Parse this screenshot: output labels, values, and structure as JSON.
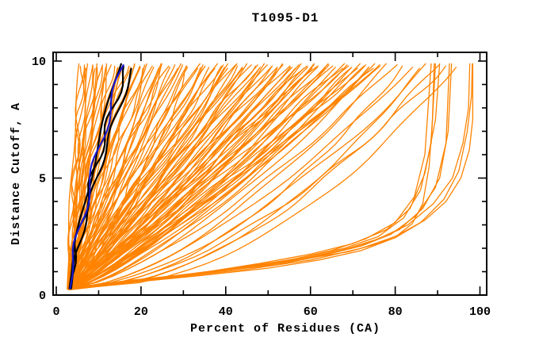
{
  "title": "T1095-D1",
  "axes": {
    "x": {
      "label": "Percent of Residues (CA)"
    },
    "y": {
      "label": "Distance Cutoff, A"
    }
  },
  "colors": {
    "model_orange": "#ff8300",
    "highlight_black": "#000000",
    "highlight_blue": "#1818cf",
    "frame": "#000000",
    "background": "#ffffff"
  },
  "chart_data": {
    "type": "line",
    "title": "T1095-D1",
    "xlabel": "Percent of Residues (CA)",
    "ylabel": "Distance Cutoff, A",
    "xlim": [
      0,
      100
    ],
    "ylim": [
      0,
      10
    ],
    "x_major_ticks": [
      0,
      20,
      40,
      60,
      80,
      100
    ],
    "x_minor_step": 10,
    "y_major_ticks": [
      0,
      5,
      10
    ],
    "y_minor_step": 1,
    "grid": false,
    "legend": false,
    "curve_start": {
      "x_percent": 3.0,
      "y_cutoff": 0.25
    },
    "series_note": "Each curve: percent of CA residues (x) under distance cutoff (y). Orange = predicted models; black/blue = highlighted models. Curve encoded as [top_percent_at_10A, shape_power]; x(y)=x0+(top-x0)*u^power, u normalized cutoff.",
    "orange_curves": [
      [
        5.5,
        1.5
      ],
      [
        5.9,
        1.35
      ],
      [
        6.3,
        1.45
      ],
      [
        6.8,
        1.25
      ],
      [
        7.3,
        1.4
      ],
      [
        7.8,
        1.3
      ],
      [
        8.3,
        1.18
      ],
      [
        8.8,
        1.35
      ],
      [
        9.3,
        1.22
      ],
      [
        9.8,
        1.42
      ],
      [
        10.2,
        1.15
      ],
      [
        10.6,
        1.3
      ],
      [
        10.9,
        1.25
      ],
      [
        11.4,
        1.12
      ],
      [
        11.9,
        1.3
      ],
      [
        12.4,
        1.08
      ],
      [
        12.9,
        1.22
      ],
      [
        13.5,
        1.35
      ],
      [
        14.1,
        1.1
      ],
      [
        14.7,
        1.28
      ],
      [
        15.3,
        1.05
      ],
      [
        15.9,
        1.2
      ],
      [
        16.5,
        1.32
      ],
      [
        17.1,
        1.08
      ],
      [
        17.7,
        1.18
      ],
      [
        18.3,
        1.25
      ],
      [
        18.9,
        1.02
      ],
      [
        19.4,
        1.15
      ],
      [
        19.8,
        1.28
      ],
      [
        20.2,
        1.1
      ],
      [
        20.8,
        1.05
      ],
      [
        21.5,
        0.92
      ],
      [
        22.3,
        1.15
      ],
      [
        23.1,
        0.98
      ],
      [
        23.9,
        1.1
      ],
      [
        24.7,
        0.88
      ],
      [
        25.5,
        1.02
      ],
      [
        26.4,
        1.18
      ],
      [
        27.3,
        0.95
      ],
      [
        28.2,
        1.08
      ],
      [
        29.1,
        0.9
      ],
      [
        30.0,
        1.12
      ],
      [
        30.9,
        0.97
      ],
      [
        31.8,
        1.05
      ],
      [
        32.8,
        0.85
      ],
      [
        33.7,
        1.1
      ],
      [
        34.6,
        0.93
      ],
      [
        35.5,
        1.02
      ],
      [
        36.4,
        0.88
      ],
      [
        37.3,
        1.08
      ],
      [
        38.2,
        0.95
      ],
      [
        39.0,
        1.05
      ],
      [
        39.6,
        0.9
      ],
      [
        40.1,
        1.0
      ],
      [
        40.5,
        0.85
      ],
      [
        25.0,
        0.95
      ],
      [
        27.8,
        1.0
      ],
      [
        31.4,
        0.92
      ],
      [
        34.2,
        0.98
      ],
      [
        37.8,
        0.93
      ],
      [
        43.2,
        0.9
      ],
      [
        47.2,
        0.94
      ],
      [
        51.2,
        0.9
      ],
      [
        55.2,
        0.87
      ],
      [
        59.2,
        0.92
      ],
      [
        41.2,
        0.95
      ],
      [
        42.0,
        1.05
      ],
      [
        42.8,
        0.88
      ],
      [
        43.6,
        0.98
      ],
      [
        44.4,
        1.08
      ],
      [
        45.2,
        0.85
      ],
      [
        46.0,
        0.95
      ],
      [
        46.8,
        1.02
      ],
      [
        47.6,
        0.9
      ],
      [
        48.4,
        1.0
      ],
      [
        49.2,
        0.82
      ],
      [
        50.0,
        0.95
      ],
      [
        50.8,
        1.05
      ],
      [
        51.6,
        0.88
      ],
      [
        52.4,
        0.98
      ],
      [
        53.2,
        0.8
      ],
      [
        54.0,
        0.92
      ],
      [
        54.8,
        1.02
      ],
      [
        55.6,
        0.85
      ],
      [
        56.4,
        0.95
      ],
      [
        57.2,
        0.78
      ],
      [
        58.0,
        0.9
      ],
      [
        58.8,
        1.0
      ],
      [
        59.5,
        0.83
      ],
      [
        60.1,
        0.93
      ],
      [
        60.6,
        0.75
      ],
      [
        61.1,
        0.88
      ],
      [
        61.6,
        0.97
      ],
      [
        62.2,
        0.82
      ],
      [
        63.0,
        0.92
      ],
      [
        63.8,
        0.75
      ],
      [
        64.6,
        0.88
      ],
      [
        65.4,
        0.95
      ],
      [
        66.2,
        0.78
      ],
      [
        67.0,
        0.9
      ],
      [
        67.8,
        0.72
      ],
      [
        68.6,
        0.85
      ],
      [
        69.4,
        0.93
      ],
      [
        70.2,
        0.76
      ],
      [
        71.0,
        0.88
      ],
      [
        71.8,
        0.7
      ],
      [
        72.6,
        0.82
      ],
      [
        73.4,
        0.9
      ],
      [
        74.2,
        0.73
      ],
      [
        74.9,
        0.85
      ],
      [
        75.5,
        0.68
      ],
      [
        76.1,
        0.8
      ],
      [
        76.7,
        0.88
      ],
      [
        73.9,
        0.78
      ],
      [
        69.9,
        0.8
      ],
      [
        78.5,
        0.62
      ],
      [
        80.0,
        0.7
      ],
      [
        82.0,
        0.55
      ],
      [
        84.0,
        0.65
      ],
      [
        86.0,
        0.5
      ],
      [
        88.0,
        0.6
      ],
      [
        90.0,
        0.52
      ],
      [
        92.0,
        0.58
      ],
      [
        94.0,
        0.48
      ]
    ],
    "black_curves": [
      [
        15.0,
        1.25
      ],
      [
        16.6,
        1.32
      ],
      [
        18.1,
        1.28
      ]
    ],
    "blue_curves": [
      [
        15.8,
        1.29
      ]
    ],
    "good_model_curves_points": [
      {
        "pts": [
          [
            3,
            0.25
          ],
          [
            15,
            0.55
          ],
          [
            30,
            0.85
          ],
          [
            45,
            1.2
          ],
          [
            58,
            1.6
          ],
          [
            68,
            2.0
          ],
          [
            76,
            2.5
          ],
          [
            82,
            3.3
          ],
          [
            86,
            4.5
          ],
          [
            88.5,
            6.5
          ],
          [
            89.5,
            9.9
          ]
        ]
      },
      {
        "pts": [
          [
            3.2,
            0.3
          ],
          [
            18,
            0.6
          ],
          [
            34,
            0.95
          ],
          [
            48,
            1.35
          ],
          [
            60,
            1.75
          ],
          [
            70,
            2.2
          ],
          [
            78,
            2.8
          ],
          [
            83.5,
            3.7
          ],
          [
            87,
            5.2
          ],
          [
            89.5,
            7.5
          ],
          [
            90.5,
            9.9
          ]
        ]
      },
      {
        "pts": [
          [
            2.8,
            0.28
          ],
          [
            12,
            0.5
          ],
          [
            26,
            0.78
          ],
          [
            42,
            1.15
          ],
          [
            55,
            1.5
          ],
          [
            65,
            1.9
          ],
          [
            73,
            2.4
          ],
          [
            80,
            3.1
          ],
          [
            84.5,
            4.2
          ],
          [
            87,
            6.0
          ],
          [
            88.5,
            9.9
          ]
        ]
      },
      {
        "pts": [
          [
            3,
            0.3
          ],
          [
            20,
            0.65
          ],
          [
            38,
            1.0
          ],
          [
            52,
            1.35
          ],
          [
            63,
            1.7
          ],
          [
            72,
            2.1
          ],
          [
            79,
            2.6
          ],
          [
            85,
            3.4
          ],
          [
            89.5,
            4.6
          ],
          [
            92,
            6.5
          ],
          [
            92.8,
            9.9
          ]
        ]
      },
      {
        "pts": [
          [
            3.1,
            0.32
          ],
          [
            22,
            0.7
          ],
          [
            40,
            1.05
          ],
          [
            54,
            1.4
          ],
          [
            65,
            1.8
          ],
          [
            74,
            2.25
          ],
          [
            81,
            2.8
          ],
          [
            86.5,
            3.7
          ],
          [
            90.5,
            5.0
          ],
          [
            92.5,
            7.0
          ],
          [
            93.3,
            9.9
          ]
        ]
      },
      {
        "pts": [
          [
            3,
            0.28
          ],
          [
            16,
            0.6
          ],
          [
            32,
            0.9
          ],
          [
            46,
            1.2
          ],
          [
            58,
            1.55
          ],
          [
            68,
            1.95
          ],
          [
            76,
            2.4
          ],
          [
            83,
            3.0
          ],
          [
            89,
            3.9
          ],
          [
            93.5,
            5.0
          ],
          [
            96,
            6.5
          ],
          [
            97.3,
            8.0
          ],
          [
            97.6,
            9.9
          ]
        ]
      },
      {
        "pts": [
          [
            3.2,
            0.25
          ],
          [
            18,
            0.55
          ],
          [
            35,
            0.85
          ],
          [
            50,
            1.15
          ],
          [
            62,
            1.5
          ],
          [
            72,
            1.9
          ],
          [
            80,
            2.45
          ],
          [
            86,
            3.1
          ],
          [
            91.5,
            4.1
          ],
          [
            95,
            5.3
          ],
          [
            97,
            7.0
          ],
          [
            98,
            8.5
          ],
          [
            98.2,
            9.9
          ]
        ]
      },
      {
        "pts": [
          [
            3,
            0.3
          ],
          [
            25,
            0.7
          ],
          [
            45,
            1.1
          ],
          [
            60,
            1.5
          ],
          [
            72,
            2.0
          ],
          [
            80,
            2.5
          ],
          [
            87,
            3.2
          ],
          [
            92,
            4.0
          ],
          [
            95.5,
            5.0
          ],
          [
            97.5,
            6.2
          ],
          [
            98.3,
            7.5
          ],
          [
            98.3,
            9.9
          ]
        ]
      },
      {
        "pts": [
          [
            2.9,
            0.22
          ],
          [
            14,
            0.45
          ],
          [
            28,
            0.8
          ],
          [
            40,
            1.05
          ],
          [
            52,
            1.3
          ],
          [
            62,
            1.65
          ],
          [
            69,
            1.85
          ],
          [
            76,
            2.2
          ],
          [
            80.5,
            2.55
          ],
          [
            84,
            3.05
          ],
          [
            86.5,
            3.9
          ],
          [
            88,
            5.5
          ],
          [
            88.8,
            7.5
          ],
          [
            89.2,
            9.9
          ]
        ]
      }
    ]
  }
}
